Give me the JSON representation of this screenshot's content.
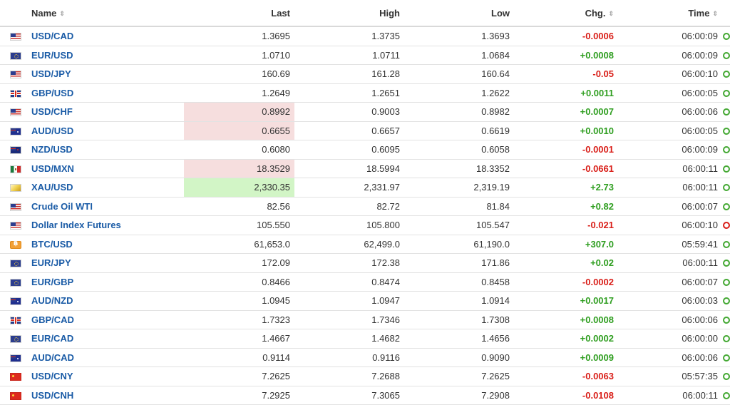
{
  "headers": {
    "name": "Name",
    "last": "Last",
    "high": "High",
    "low": "Low",
    "chg": "Chg.",
    "time": "Time",
    "sort_icon": "sort-arrows-icon"
  },
  "colors": {
    "link": "#1a5ba6",
    "positive": "#2f9e20",
    "negative": "#d91e18",
    "highlight_down": "#f6dede",
    "highlight_up": "#d2f5c6"
  },
  "rows": [
    {
      "flag": "us",
      "name": "USD/CAD",
      "last": "1.3695",
      "high": "1.3735",
      "low": "1.3693",
      "chg": "-0.0006",
      "time": "06:00:09",
      "hl": "",
      "status": "green"
    },
    {
      "flag": "eu",
      "name": "EUR/USD",
      "last": "1.0710",
      "high": "1.0711",
      "low": "1.0684",
      "chg": "+0.0008",
      "time": "06:00:09",
      "hl": "",
      "status": "green"
    },
    {
      "flag": "us",
      "name": "USD/JPY",
      "last": "160.69",
      "high": "161.28",
      "low": "160.64",
      "chg": "-0.05",
      "time": "06:00:10",
      "hl": "",
      "status": "green"
    },
    {
      "flag": "gb",
      "name": "GBP/USD",
      "last": "1.2649",
      "high": "1.2651",
      "low": "1.2622",
      "chg": "+0.0011",
      "time": "06:00:05",
      "hl": "",
      "status": "green"
    },
    {
      "flag": "us",
      "name": "USD/CHF",
      "last": "0.8992",
      "high": "0.9003",
      "low": "0.8982",
      "chg": "+0.0007",
      "time": "06:00:06",
      "hl": "red",
      "status": "green"
    },
    {
      "flag": "au",
      "name": "AUD/USD",
      "last": "0.6655",
      "high": "0.6657",
      "low": "0.6619",
      "chg": "+0.0010",
      "time": "06:00:05",
      "hl": "red",
      "status": "green"
    },
    {
      "flag": "nz",
      "name": "NZD/USD",
      "last": "0.6080",
      "high": "0.6095",
      "low": "0.6058",
      "chg": "-0.0001",
      "time": "06:00:09",
      "hl": "",
      "status": "green"
    },
    {
      "flag": "mx",
      "name": "USD/MXN",
      "last": "18.3529",
      "high": "18.5994",
      "low": "18.3352",
      "chg": "-0.0661",
      "time": "06:00:11",
      "hl": "red",
      "status": "green"
    },
    {
      "flag": "gold",
      "name": "XAU/USD",
      "last": "2,330.35",
      "high": "2,331.97",
      "low": "2,319.19",
      "chg": "+2.73",
      "time": "06:00:11",
      "hl": "green",
      "status": "green"
    },
    {
      "flag": "us",
      "name": "Crude Oil WTI",
      "last": "82.56",
      "high": "82.72",
      "low": "81.84",
      "chg": "+0.82",
      "time": "06:00:07",
      "hl": "",
      "status": "green"
    },
    {
      "flag": "us",
      "name": "Dollar Index Futures",
      "last": "105.550",
      "high": "105.800",
      "low": "105.547",
      "chg": "-0.021",
      "time": "06:00:10",
      "hl": "",
      "status": "red"
    },
    {
      "flag": "btc",
      "name": "BTC/USD",
      "last": "61,653.0",
      "high": "62,499.0",
      "low": "61,190.0",
      "chg": "+307.0",
      "time": "05:59:41",
      "hl": "",
      "status": "green"
    },
    {
      "flag": "eu",
      "name": "EUR/JPY",
      "last": "172.09",
      "high": "172.38",
      "low": "171.86",
      "chg": "+0.02",
      "time": "06:00:11",
      "hl": "",
      "status": "green"
    },
    {
      "flag": "eu",
      "name": "EUR/GBP",
      "last": "0.8466",
      "high": "0.8474",
      "low": "0.8458",
      "chg": "-0.0002",
      "time": "06:00:07",
      "hl": "",
      "status": "green"
    },
    {
      "flag": "au",
      "name": "AUD/NZD",
      "last": "1.0945",
      "high": "1.0947",
      "low": "1.0914",
      "chg": "+0.0017",
      "time": "06:00:03",
      "hl": "",
      "status": "green"
    },
    {
      "flag": "gb",
      "name": "GBP/CAD",
      "last": "1.7323",
      "high": "1.7346",
      "low": "1.7308",
      "chg": "+0.0008",
      "time": "06:00:06",
      "hl": "",
      "status": "green"
    },
    {
      "flag": "eu",
      "name": "EUR/CAD",
      "last": "1.4667",
      "high": "1.4682",
      "low": "1.4656",
      "chg": "+0.0002",
      "time": "06:00:00",
      "hl": "",
      "status": "green"
    },
    {
      "flag": "au",
      "name": "AUD/CAD",
      "last": "0.9114",
      "high": "0.9116",
      "low": "0.9090",
      "chg": "+0.0009",
      "time": "06:00:06",
      "hl": "",
      "status": "green"
    },
    {
      "flag": "cn",
      "name": "USD/CNY",
      "last": "7.2625",
      "high": "7.2688",
      "low": "7.2625",
      "chg": "-0.0063",
      "time": "05:57:35",
      "hl": "",
      "status": "green"
    },
    {
      "flag": "cn",
      "name": "USD/CNH",
      "last": "7.2925",
      "high": "7.3065",
      "low": "7.2908",
      "chg": "-0.0108",
      "time": "06:00:11",
      "hl": "",
      "status": "green"
    }
  ]
}
